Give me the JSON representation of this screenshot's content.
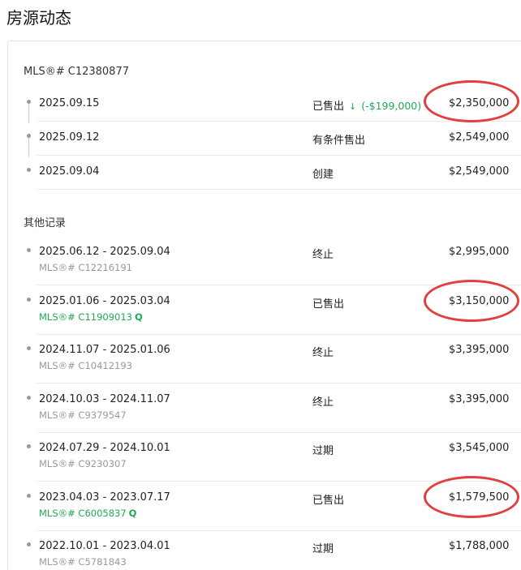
{
  "page_title": "房源动态",
  "colors": {
    "accent_green": "#1faa55",
    "annotation_red": "#e0403e"
  },
  "current_listing": {
    "mls_label": "MLS®# C12380877",
    "events": [
      {
        "date": "2025.09.15",
        "status": "已售出",
        "change_icon": "arrow-down-icon",
        "change": "(-$199,000)",
        "price": "$2,350,000",
        "circled": true
      },
      {
        "date": "2025.09.12",
        "status": "有条件售出",
        "price": "$2,549,000"
      },
      {
        "date": "2025.09.04",
        "status": "创建",
        "price": "$2,549,000"
      }
    ]
  },
  "other_records": {
    "label": "其他记录",
    "items": [
      {
        "dates": "2025.06.12 - 2025.09.04",
        "mls": "MLS®# C12216191",
        "link": false,
        "status": "终止",
        "price": "$2,995,000"
      },
      {
        "dates": "2025.01.06 - 2025.03.04",
        "mls": "MLS®# C11909013",
        "link": true,
        "status": "已售出",
        "price": "$3,150,000",
        "circled": true
      },
      {
        "dates": "2024.11.07 - 2025.01.06",
        "mls": "MLS®# C10412193",
        "link": false,
        "status": "终止",
        "price": "$3,395,000"
      },
      {
        "dates": "2024.10.03 - 2024.11.07",
        "mls": "MLS®# C9379547",
        "link": false,
        "status": "终止",
        "price": "$3,395,000"
      },
      {
        "dates": "2024.07.29 - 2024.10.01",
        "mls": "MLS®# C9230307",
        "link": false,
        "status": "过期",
        "price": "$3,545,000"
      },
      {
        "dates": "2023.04.03 - 2023.07.17",
        "mls": "MLS®# C6005837",
        "link": true,
        "status": "已售出",
        "price": "$1,579,500",
        "circled": true
      },
      {
        "dates": "2022.10.01 - 2023.04.01",
        "mls": "MLS®# C5781843",
        "link": false,
        "status": "过期",
        "price": "$1,788,000"
      }
    ]
  }
}
